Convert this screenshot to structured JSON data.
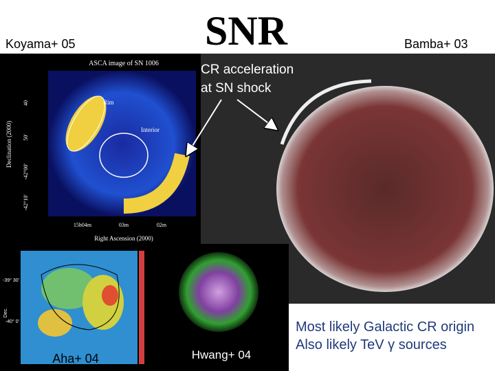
{
  "header": {
    "title": "SNR",
    "left_credit": "Koyama+ 05",
    "right_credit": "Bamba+ 03"
  },
  "annotation": {
    "lines": [
      "CR acceleration",
      "at SN shock"
    ]
  },
  "asca_image": {
    "title": "ASCA image of SN 1006",
    "labels": [
      "Rim",
      "Interior"
    ],
    "y_axis_label": "Declination (2000)",
    "x_axis_label": "Right Ascension (2000)",
    "y_ticks": [
      "40",
      "50'",
      "-42°00'",
      "-42°10'"
    ],
    "x_ticks": [
      "15h04m",
      "03m",
      "02m"
    ]
  },
  "aha_image": {
    "y_axis_label": "Dec.",
    "y_ticks": [
      "-39° 30'",
      "-40° 0'"
    ]
  },
  "credits": {
    "aha": "Aha+ 04",
    "hwang": "Hwang+ 04"
  },
  "conclusions": [
    "Most likely Galactic CR origin",
    "Also likely TeV γ sources"
  ]
}
